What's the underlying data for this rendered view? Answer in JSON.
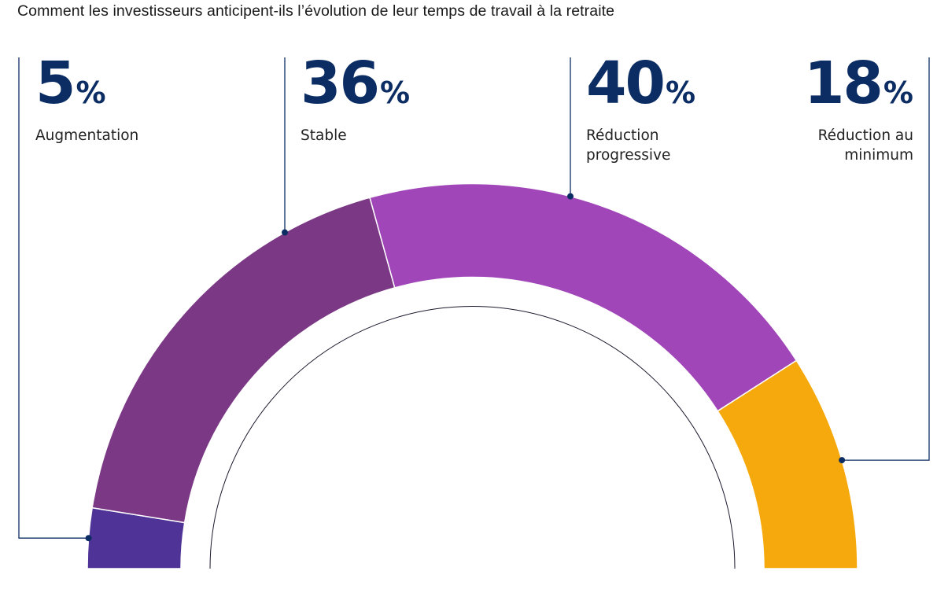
{
  "title": "Comment les investisseurs anticipent-ils l’évolution de leur temps de travail à la retraite",
  "colors": {
    "text_accent": "#0b2d63",
    "leader_line": "#0b2d63",
    "inner_arc_line": "#1a1a2e"
  },
  "chart_data": {
    "type": "pie",
    "variant": "semi-donut",
    "title": "Comment les investisseurs anticipent-ils l’évolution de leur temps de travail à la retraite",
    "unit": "%",
    "categories": [
      "Augmentation",
      "Stable",
      "Réduction progressive",
      "Réduction au minimum"
    ],
    "values": [
      5,
      36,
      40,
      18
    ],
    "series": [
      {
        "name": "Augmentation",
        "value": 5,
        "display": "5",
        "label": "Augmentation",
        "color": "#4f3397"
      },
      {
        "name": "Stable",
        "value": 36,
        "display": "36",
        "label": "Stable",
        "color": "#7b3885"
      },
      {
        "name": "Réduction progressive",
        "value": 40,
        "display": "40",
        "label": "Réduction\nprogressive",
        "color": "#a046b8"
      },
      {
        "name": "Réduction au minimum",
        "value": 18,
        "display": "18",
        "label": "Réduction au\nminimum",
        "color": "#f5a90c"
      }
    ],
    "order": "left-to-right",
    "legend": "none"
  }
}
